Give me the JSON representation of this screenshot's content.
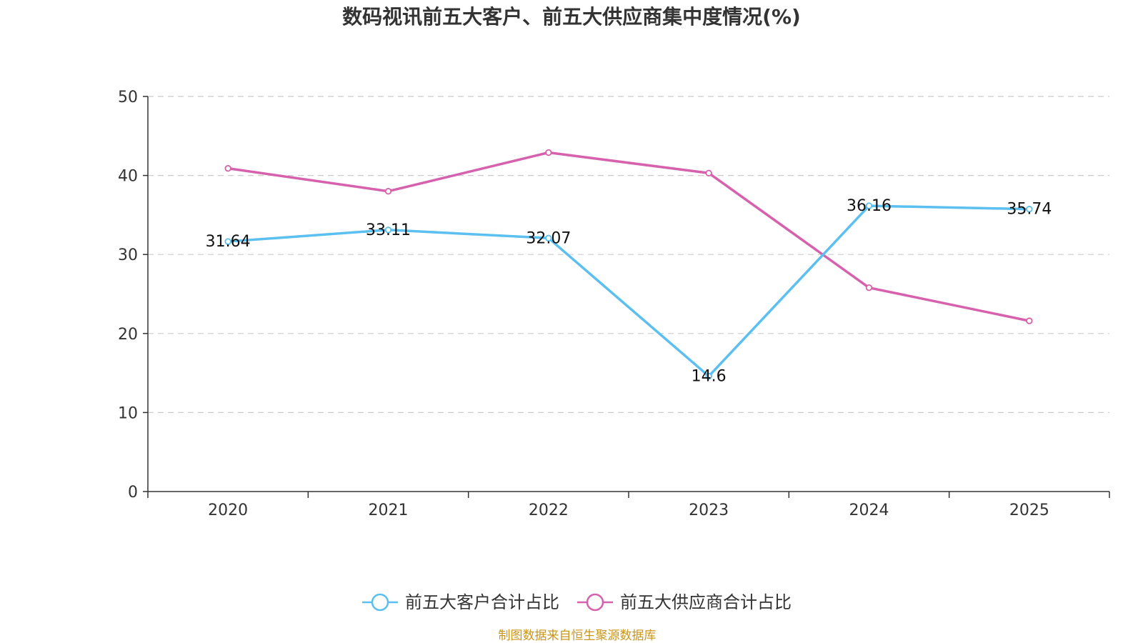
{
  "chart_data": {
    "type": "line",
    "title": "数码视讯前五大客户、前五大供应商集中度情况(%)",
    "categories": [
      "2020",
      "2021",
      "2022",
      "2023",
      "2024",
      "2025"
    ],
    "ylim": [
      0,
      50
    ],
    "yticks": [
      0,
      10,
      20,
      30,
      40,
      50
    ],
    "grid": true,
    "legend_position": "bottom",
    "series": [
      {
        "name": "前五大客户合计占比",
        "color": "#5bc0f0",
        "values": [
          31.64,
          33.11,
          32.07,
          14.6,
          36.16,
          35.74
        ],
        "data_labels": [
          "31.64",
          "33.11",
          "32.07",
          "14.6",
          "36.16",
          "35.74"
        ]
      },
      {
        "name": "前五大供应商合计占比",
        "color": "#d661ac",
        "values": [
          40.9,
          38.0,
          42.9,
          40.3,
          25.8,
          21.6
        ],
        "data_labels": []
      }
    ]
  },
  "source": {
    "text": "制图数据来自恒生聚源数据库",
    "color": "#c9961a"
  }
}
